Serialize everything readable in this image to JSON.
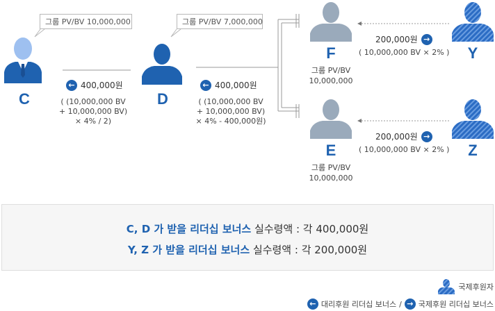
{
  "nodes": {
    "C": {
      "label": "C",
      "bubble": "그룹 PV/BV 10,000,000"
    },
    "D": {
      "label": "D",
      "bubble": "그룹 PV/BV 7,000,000"
    },
    "F": {
      "label": "F",
      "group_line1": "그룹 PV/BV",
      "group_line2": "10,000,000"
    },
    "E": {
      "label": "E",
      "group_line1": "그룹 PV/BV",
      "group_line2": "10,000,000"
    },
    "Y": {
      "label": "Y"
    },
    "Z": {
      "label": "Z"
    }
  },
  "transfers": {
    "d_to_c": {
      "amount": "400,000원",
      "calc_line1": "( (10,000,000 BV",
      "calc_line2": "+ 10,000,000 BV)",
      "calc_line3": "× 4% / 2)"
    },
    "fe_to_d": {
      "amount": "400,000원",
      "calc_line1": "( (10,000,000 BV",
      "calc_line2": "+ 10,000,000 BV)",
      "calc_line3": "× 4% - 400,000원)"
    },
    "y_to_f": {
      "amount": "200,000원",
      "calc": "( 10,000,000 BV × 2% )"
    },
    "z_to_e": {
      "amount": "200,000원",
      "calc": "( 10,000,000 BV × 2% )"
    }
  },
  "summary": {
    "line1_highlight": "C, D 가 받을 리더십 보너스",
    "line1_rest": " 실수령액 : 각 400,000원",
    "line2_highlight": "Y, Z 가 받을 리더십 보너스",
    "line2_rest": " 실수령액 : 각 200,000원"
  },
  "legend": {
    "international_sponsor": "국제후원자",
    "agent_bonus": "대리후원 리더십 보너스",
    "separator": "/",
    "international_bonus": "국제후원 리더십 보너스"
  },
  "colors": {
    "primary": "#1f62b0",
    "gray_person": "#9aaabb",
    "light_person": "#9ec0f0"
  }
}
